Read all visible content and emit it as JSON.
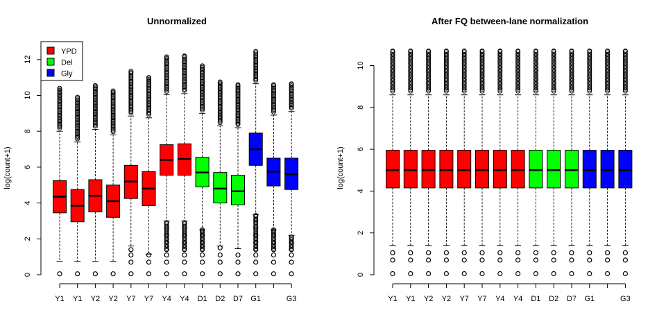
{
  "colors": {
    "YPD": "#ff0000",
    "Del": "#00ff00",
    "Gly": "#0000ff"
  },
  "chart_data": [
    {
      "type": "boxplot",
      "title": "Unnormalized",
      "ylabel": "log(count+1)",
      "xlabel": "",
      "ylim": [
        0,
        13
      ],
      "yticks": [
        0,
        2,
        4,
        6,
        8,
        10,
        12
      ],
      "grid": false,
      "legend": {
        "placement": "top-left",
        "entries": [
          {
            "name": "YPD",
            "color": "#ff0000"
          },
          {
            "name": "Del",
            "color": "#00ff00"
          },
          {
            "name": "Gly",
            "color": "#0000ff"
          }
        ]
      },
      "categories": [
        "Y1",
        "Y1",
        "Y2",
        "Y2",
        "Y7",
        "Y7",
        "Y4",
        "Y4",
        "D1",
        "D2",
        "D7",
        "G1",
        "",
        "G3"
      ],
      "groups": [
        "YPD",
        "YPD",
        "YPD",
        "YPD",
        "YPD",
        "YPD",
        "YPD",
        "YPD",
        "Del",
        "Del",
        "Del",
        "Gly",
        "Gly",
        "Gly"
      ],
      "boxes": [
        {
          "lw": 0.75,
          "q1": 3.45,
          "med": 4.35,
          "q3": 5.25,
          "uw": 8.0,
          "hi_out_max": 10.4,
          "lo_out": [
            0.05
          ]
        },
        {
          "lw": 0.75,
          "q1": 2.95,
          "med": 3.85,
          "q3": 4.75,
          "uw": 7.4,
          "hi_out_max": 9.9,
          "lo_out": [
            0.05
          ]
        },
        {
          "lw": 0.75,
          "q1": 3.5,
          "med": 4.4,
          "q3": 5.3,
          "uw": 8.1,
          "hi_out_max": 10.55,
          "lo_out": [
            0.05
          ]
        },
        {
          "lw": 0.75,
          "q1": 3.2,
          "med": 4.1,
          "q3": 5.0,
          "uw": 7.8,
          "hi_out_max": 10.25,
          "lo_out": [
            0.05
          ]
        },
        {
          "lw": 1.6,
          "q1": 4.25,
          "med": 5.2,
          "q3": 6.1,
          "uw": 8.85,
          "hi_out_max": 11.35,
          "lo_out": [
            0.05,
            0.7,
            1.1,
            1.4
          ]
        },
        {
          "lw": 1.15,
          "q1": 3.85,
          "med": 4.8,
          "q3": 5.75,
          "uw": 8.75,
          "hi_out_max": 11.0,
          "lo_out": [
            0.05,
            0.7,
            1.1
          ]
        },
        {
          "lw": 3.0,
          "q1": 5.55,
          "med": 6.4,
          "q3": 7.25,
          "uw": 10.05,
          "hi_out_max": 12.15,
          "lo_out": [
            0.05,
            0.7,
            1.1,
            1.4,
            1.8,
            2.2,
            2.6,
            2.9
          ]
        },
        {
          "lw": 3.0,
          "q1": 5.55,
          "med": 6.45,
          "q3": 7.3,
          "uw": 10.1,
          "hi_out_max": 12.2,
          "lo_out": [
            0.05,
            0.7,
            1.1,
            1.4,
            1.8,
            2.2,
            2.6,
            2.9
          ]
        },
        {
          "lw": 2.5,
          "q1": 4.9,
          "med": 5.7,
          "q3": 6.55,
          "uw": 9.0,
          "hi_out_max": 11.65,
          "lo_out": [
            0.05,
            0.7,
            1.1,
            1.4,
            1.8,
            2.2,
            2.5
          ]
        },
        {
          "lw": 1.6,
          "q1": 4.0,
          "med": 4.8,
          "q3": 5.7,
          "uw": 8.3,
          "hi_out_max": 10.75,
          "lo_out": [
            0.05,
            0.7,
            1.1,
            1.5
          ]
        },
        {
          "lw": 1.45,
          "q1": 3.9,
          "med": 4.65,
          "q3": 5.55,
          "uw": 8.2,
          "hi_out_max": 10.6,
          "lo_out": [
            0.05,
            0.7,
            1.1
          ]
        },
        {
          "lw": 3.35,
          "q1": 6.1,
          "med": 7.0,
          "q3": 7.9,
          "uw": 10.65,
          "hi_out_max": 12.45,
          "lo_out": [
            0.05,
            0.7,
            1.1,
            1.4,
            1.8,
            2.2,
            2.6,
            3.0,
            3.3
          ]
        },
        {
          "lw": 2.5,
          "q1": 4.95,
          "med": 5.75,
          "q3": 6.5,
          "uw": 8.9,
          "hi_out_max": 10.6,
          "lo_out": [
            0.05,
            0.7,
            1.1,
            1.4,
            1.8,
            2.2,
            2.5
          ]
        },
        {
          "lw": 2.2,
          "q1": 4.75,
          "med": 5.6,
          "q3": 6.5,
          "uw": 9.1,
          "hi_out_max": 10.65,
          "lo_out": [
            0.05,
            0.7,
            1.1,
            1.4,
            1.8,
            2.1
          ]
        }
      ]
    },
    {
      "type": "boxplot",
      "title": "After FQ between-lane normalization",
      "ylabel": "log(count+1)",
      "xlabel": "",
      "ylim": [
        0,
        11
      ],
      "yticks": [
        0,
        2,
        4,
        6,
        8,
        10
      ],
      "grid": false,
      "categories": [
        "Y1",
        "Y1",
        "Y2",
        "Y2",
        "Y7",
        "Y7",
        "Y4",
        "Y4",
        "D1",
        "D2",
        "D7",
        "G1",
        "",
        "G3"
      ],
      "groups": [
        "YPD",
        "YPD",
        "YPD",
        "YPD",
        "YPD",
        "YPD",
        "YPD",
        "YPD",
        "Del",
        "Del",
        "Del",
        "Gly",
        "Gly",
        "Gly"
      ],
      "shared_box": {
        "lw": 1.4,
        "q1": 4.15,
        "med": 5.0,
        "q3": 5.95,
        "uw": 8.6,
        "hi_out_max": 10.7,
        "lo_out": [
          0.05,
          0.7,
          1.05
        ]
      }
    }
  ]
}
